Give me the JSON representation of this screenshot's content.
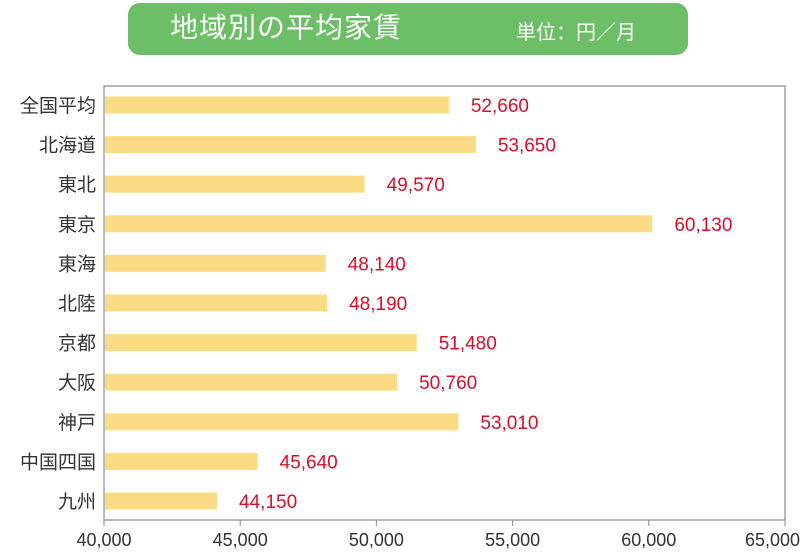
{
  "chart_data": {
    "type": "bar",
    "orientation": "horizontal",
    "title": "地域別の平均家賃",
    "unit": "単位：円／月",
    "categories": [
      "全国平均",
      "北海道",
      "東北",
      "東京",
      "東海",
      "北陸",
      "京都",
      "大阪",
      "神戸",
      "中国四国",
      "九州"
    ],
    "values": [
      52660,
      53650,
      49570,
      60130,
      48140,
      48190,
      51480,
      50760,
      53010,
      45640,
      44150
    ],
    "value_labels": [
      "52,660",
      "53,650",
      "49,570",
      "60,130",
      "48,140",
      "48,190",
      "51,480",
      "50,760",
      "53,010",
      "45,640",
      "44,150"
    ],
    "xlim": [
      40000,
      65000
    ],
    "x_ticks": [
      40000,
      45000,
      50000,
      55000,
      60000,
      65000
    ],
    "x_tick_labels": [
      "40,000",
      "45,000",
      "50,000",
      "55,000",
      "60,000",
      "65,000"
    ],
    "grid": false,
    "colors": {
      "bar": "#fbdc84",
      "value_label": "#d7102a",
      "title_background": "#6dbf67",
      "title_text": "#ffffff",
      "frame": "#888888"
    }
  }
}
